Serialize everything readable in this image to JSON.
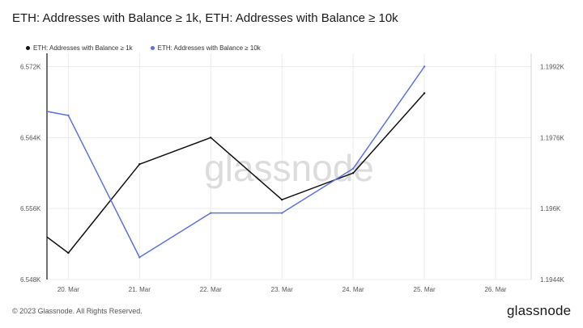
{
  "title": "ETH: Addresses with Balance ≥ 1k, ETH: Addresses with Balance ≥ 10k",
  "legend": [
    {
      "label": "ETH: Addresses with Balance ≥ 1k",
      "color": "#111111"
    },
    {
      "label": "ETH: Addresses with Balance ≥ 10k",
      "color": "#5b73e0"
    }
  ],
  "watermark": "glassnode",
  "footer": {
    "copyright": "© 2023 Glassnode. All Rights Reserved.",
    "logo": "glassnode"
  },
  "chart_data": {
    "type": "line",
    "x_ticks": [
      "20. Mar",
      "21. Mar",
      "22. Mar",
      "23. Mar",
      "24. Mar",
      "25. Mar",
      "26. Mar"
    ],
    "x_tick_values": [
      "2023-03-20",
      "2023-03-21",
      "2023-03-22",
      "2023-03-23",
      "2023-03-24",
      "2023-03-25",
      "2023-03-26"
    ],
    "x_range": [
      "2023-03-19.7",
      "2023-03-26.5"
    ],
    "y_left": {
      "ticks": [
        "6.548K",
        "6.556K",
        "6.564K",
        "6.572K"
      ],
      "tick_values": [
        6548,
        6556,
        6564,
        6572
      ],
      "range": [
        6548,
        6573.5
      ]
    },
    "y_right": {
      "ticks": [
        "1.1944K",
        "1.196K",
        "1.1976K",
        "1.1992K"
      ],
      "tick_values": [
        1194.4,
        1196,
        1197.6,
        1199.2
      ],
      "range": [
        1194.4,
        1199.5
      ]
    },
    "grid": true,
    "legend_position": "top-left",
    "series": [
      {
        "name": "ETH: Addresses with Balance ≥ 1k",
        "axis": "left",
        "color": "#111111",
        "x": [
          "2023-03-19",
          "2023-03-20",
          "2023-03-21",
          "2023-03-22",
          "2023-03-23",
          "2023-03-24",
          "2023-03-25"
        ],
        "y": [
          6557,
          6551,
          6561,
          6564,
          6557,
          6560,
          6569
        ]
      },
      {
        "name": "ETH: Addresses with Balance ≥ 10k",
        "axis": "right",
        "color": "#5b73e0",
        "x": [
          "2023-03-19",
          "2023-03-20",
          "2023-03-21",
          "2023-03-22",
          "2023-03-23",
          "2023-03-24",
          "2023-03-25"
        ],
        "y": [
          1198.4,
          1198.1,
          1194.9,
          1195.9,
          1195.9,
          1196.9,
          1199.2
        ]
      }
    ]
  }
}
